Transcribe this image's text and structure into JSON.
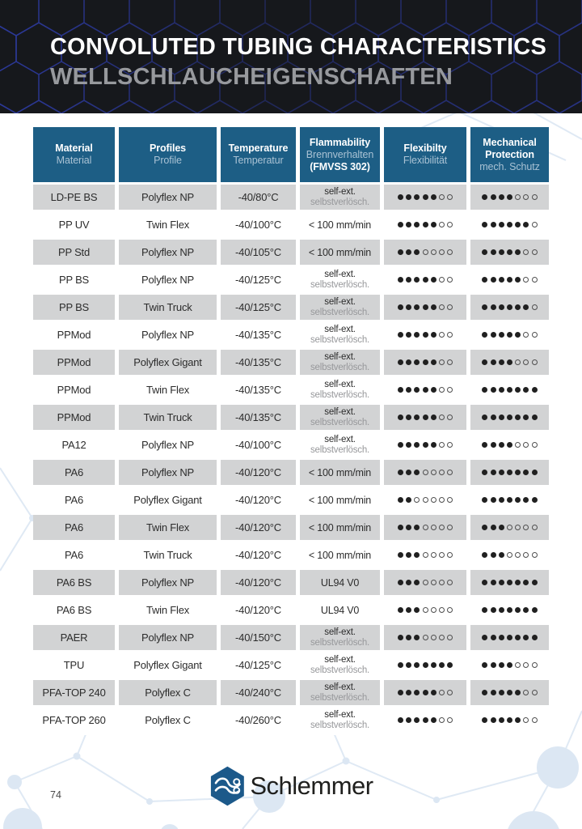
{
  "banner": {
    "title": "CONVOLUTED TUBING CHARACTERISTICS",
    "subtitle": "WELLSCHLAUCHEIGENSCHAFTEN"
  },
  "table": {
    "columns": [
      {
        "en": "Material",
        "de": "Material"
      },
      {
        "en": "Profiles",
        "de": "Profile"
      },
      {
        "en": "Temperature",
        "de": "Temperatur"
      },
      {
        "en": "Flammability",
        "de": "Brennverhalten",
        "en2": "(FMVSS 302)"
      },
      {
        "en": "Flexibilty",
        "de": "Flexibilität"
      },
      {
        "en": "Mechanical Protection",
        "de": "mech. Schutz"
      }
    ],
    "dot_max": 7,
    "rows": [
      {
        "material": "LD-PE BS",
        "profile": "Polyflex NP",
        "temperature": "-40/80°C",
        "flammability_en": "self-ext.",
        "flammability_de": "selbstverlösch.",
        "flex": 5,
        "mech": 4
      },
      {
        "material": "PP UV",
        "profile": "Twin Flex",
        "temperature": "-40/100°C",
        "flammability_en": "< 100 mm/min",
        "flammability_de": "",
        "flex": 5,
        "mech": 6
      },
      {
        "material": "PP Std",
        "profile": "Polyflex NP",
        "temperature": "-40/105°C",
        "flammability_en": "< 100 mm/min",
        "flammability_de": "",
        "flex": 3,
        "mech": 5
      },
      {
        "material": "PP BS",
        "profile": "Polyflex NP",
        "temperature": "-40/125°C",
        "flammability_en": "self-ext.",
        "flammability_de": "selbstverlösch.",
        "flex": 5,
        "mech": 5
      },
      {
        "material": "PP BS",
        "profile": "Twin Truck",
        "temperature": "-40/125°C",
        "flammability_en": "self-ext.",
        "flammability_de": "selbstverlösch.",
        "flex": 5,
        "mech": 6
      },
      {
        "material": "PPMod",
        "profile": "Polyflex NP",
        "temperature": "-40/135°C",
        "flammability_en": "self-ext.",
        "flammability_de": "selbstverlösch.",
        "flex": 5,
        "mech": 5
      },
      {
        "material": "PPMod",
        "profile": "Polyflex Gigant",
        "temperature": "-40/135°C",
        "flammability_en": "self-ext.",
        "flammability_de": "selbstverlösch.",
        "flex": 5,
        "mech": 4
      },
      {
        "material": "PPMod",
        "profile": "Twin Flex",
        "temperature": "-40/135°C",
        "flammability_en": "self-ext.",
        "flammability_de": "selbstverlösch.",
        "flex": 5,
        "mech": 7
      },
      {
        "material": "PPMod",
        "profile": "Twin Truck",
        "temperature": "-40/135°C",
        "flammability_en": "self-ext.",
        "flammability_de": "selbstverlösch.",
        "flex": 5,
        "mech": 7
      },
      {
        "material": "PA12",
        "profile": "Polyflex NP",
        "temperature": "-40/100°C",
        "flammability_en": "self-ext.",
        "flammability_de": "selbstverlösch.",
        "flex": 5,
        "mech": 4
      },
      {
        "material": "PA6",
        "profile": "Polyflex NP",
        "temperature": "-40/120°C",
        "flammability_en": "< 100 mm/min",
        "flammability_de": "",
        "flex": 3,
        "mech": 7
      },
      {
        "material": "PA6",
        "profile": "Polyflex Gigant",
        "temperature": "-40/120°C",
        "flammability_en": "< 100 mm/min",
        "flammability_de": "",
        "flex": 2,
        "mech": 7
      },
      {
        "material": "PA6",
        "profile": "Twin Flex",
        "temperature": "-40/120°C",
        "flammability_en": "< 100 mm/min",
        "flammability_de": "",
        "flex": 3,
        "mech": 3
      },
      {
        "material": "PA6",
        "profile": "Twin Truck",
        "temperature": "-40/120°C",
        "flammability_en": "< 100 mm/min",
        "flammability_de": "",
        "flex": 3,
        "mech": 3
      },
      {
        "material": "PA6 BS",
        "profile": "Polyflex NP",
        "temperature": "-40/120°C",
        "flammability_en": "UL94 V0",
        "flammability_de": "",
        "flex": 3,
        "mech": 7
      },
      {
        "material": "PA6 BS",
        "profile": "Twin Flex",
        "temperature": "-40/120°C",
        "flammability_en": "UL94 V0",
        "flammability_de": "",
        "flex": 3,
        "mech": 7
      },
      {
        "material": "PAER",
        "profile": "Polyflex NP",
        "temperature": "-40/150°C",
        "flammability_en": "self-ext.",
        "flammability_de": "selbstverlösch.",
        "flex": 3,
        "mech": 7
      },
      {
        "material": "TPU",
        "profile": "Polyflex Gigant",
        "temperature": "-40/125°C",
        "flammability_en": "self-ext.",
        "flammability_de": "selbstverlösch.",
        "flex": 7,
        "mech": 4
      },
      {
        "material": "PFA-TOP 240",
        "profile": "Polyflex C",
        "temperature": "-40/240°C",
        "flammability_en": "self-ext.",
        "flammability_de": "selbstverlösch.",
        "flex": 5,
        "mech": 5
      },
      {
        "material": "PFA-TOP 260",
        "profile": "Polyflex C",
        "temperature": "-40/260°C",
        "flammability_en": "self-ext.",
        "flammability_de": "selbstverlösch.",
        "flex": 5,
        "mech": 5
      }
    ]
  },
  "footer": {
    "page_number": "74",
    "logo_text": "Schlemmer",
    "logo_icon": "schlemmer-hexagon-tubes-icon"
  },
  "colors": {
    "banner_bg": "#16181c",
    "banner_hex_stroke": "#3547d5",
    "header_cell_bg": "#1d5e85",
    "header_de_text": "#a9c2d4",
    "row_gray": "#d2d3d4",
    "dot_filled": "#202020",
    "dot_empty_outline": "#4e4e4e",
    "network_line": "#dfe9f4",
    "network_fill": "#dce7f3"
  }
}
